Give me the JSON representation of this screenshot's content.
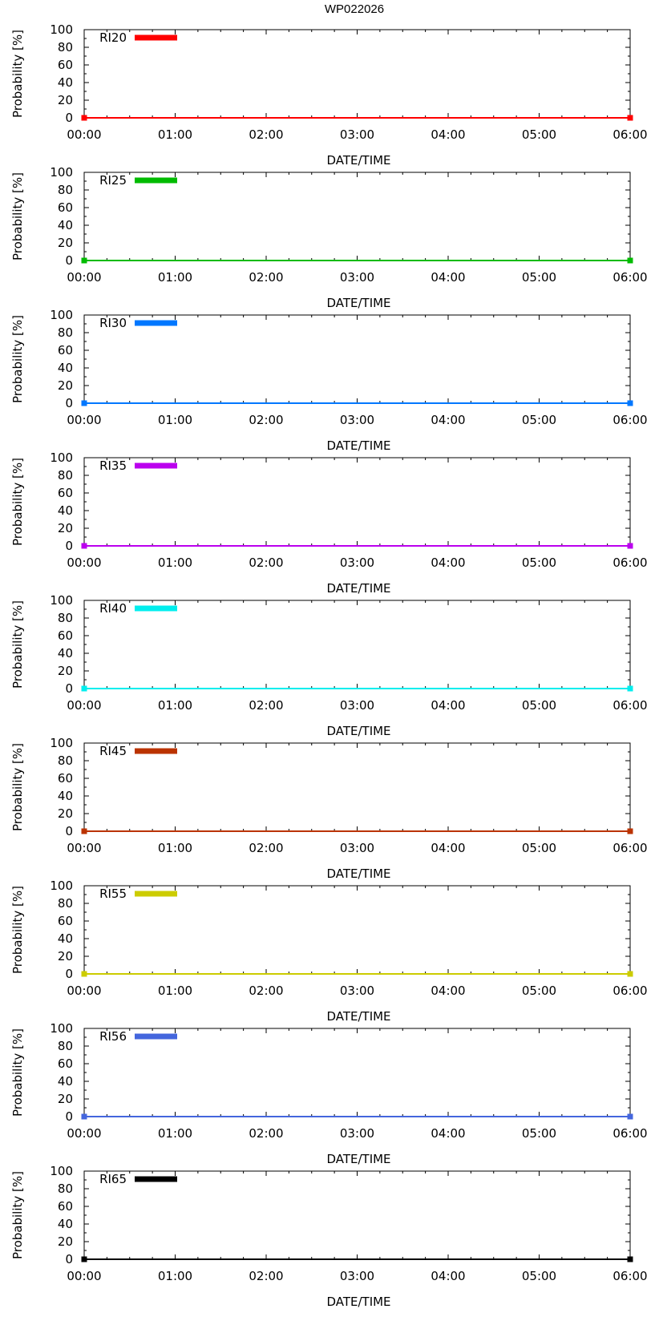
{
  "figure_title": "WP022026",
  "chart_data": [
    {
      "type": "line",
      "title": "",
      "xlabel": "DATE/TIME",
      "ylabel": "Probability [%]",
      "categories": [
        "00:00",
        "01:00",
        "02:00",
        "03:00",
        "04:00",
        "05:00",
        "06:00"
      ],
      "yticks": [
        "0",
        "20",
        "40",
        "60",
        "80",
        "100"
      ],
      "ylim": [
        0,
        100
      ],
      "xlim": [
        0,
        6
      ],
      "legend": "top-left",
      "series": [
        {
          "name": "RI20",
          "color": "#ff0000",
          "x": [
            0,
            6
          ],
          "values": [
            0,
            0
          ]
        }
      ]
    },
    {
      "type": "line",
      "title": "",
      "xlabel": "DATE/TIME",
      "ylabel": "Probability [%]",
      "categories": [
        "00:00",
        "01:00",
        "02:00",
        "03:00",
        "04:00",
        "05:00",
        "06:00"
      ],
      "yticks": [
        "0",
        "20",
        "40",
        "60",
        "80",
        "100"
      ],
      "ylim": [
        0,
        100
      ],
      "xlim": [
        0,
        6
      ],
      "legend": "top-left",
      "series": [
        {
          "name": "RI25",
          "color": "#00bb00",
          "x": [
            0,
            6
          ],
          "values": [
            0,
            0
          ]
        }
      ]
    },
    {
      "type": "line",
      "title": "",
      "xlabel": "DATE/TIME",
      "ylabel": "Probability [%]",
      "categories": [
        "00:00",
        "01:00",
        "02:00",
        "03:00",
        "04:00",
        "05:00",
        "06:00"
      ],
      "yticks": [
        "0",
        "20",
        "40",
        "60",
        "80",
        "100"
      ],
      "ylim": [
        0,
        100
      ],
      "xlim": [
        0,
        6
      ],
      "legend": "top-left",
      "series": [
        {
          "name": "RI30",
          "color": "#0077ff",
          "x": [
            0,
            6
          ],
          "values": [
            0,
            0
          ]
        }
      ]
    },
    {
      "type": "line",
      "title": "",
      "xlabel": "DATE/TIME",
      "ylabel": "Probability [%]",
      "categories": [
        "00:00",
        "01:00",
        "02:00",
        "03:00",
        "04:00",
        "05:00",
        "06:00"
      ],
      "yticks": [
        "0",
        "20",
        "40",
        "60",
        "80",
        "100"
      ],
      "ylim": [
        0,
        100
      ],
      "xlim": [
        0,
        6
      ],
      "legend": "top-left",
      "series": [
        {
          "name": "RI35",
          "color": "#bb00ee",
          "x": [
            0,
            6
          ],
          "values": [
            0,
            0
          ]
        }
      ]
    },
    {
      "type": "line",
      "title": "",
      "xlabel": "DATE/TIME",
      "ylabel": "Probability [%]",
      "categories": [
        "00:00",
        "01:00",
        "02:00",
        "03:00",
        "04:00",
        "05:00",
        "06:00"
      ],
      "yticks": [
        "0",
        "20",
        "40",
        "60",
        "80",
        "100"
      ],
      "ylim": [
        0,
        100
      ],
      "xlim": [
        0,
        6
      ],
      "legend": "top-left",
      "series": [
        {
          "name": "RI40",
          "color": "#00eeee",
          "x": [
            0,
            6
          ],
          "values": [
            0,
            0
          ]
        }
      ]
    },
    {
      "type": "line",
      "title": "",
      "xlabel": "DATE/TIME",
      "ylabel": "Probability [%]",
      "categories": [
        "00:00",
        "01:00",
        "02:00",
        "03:00",
        "04:00",
        "05:00",
        "06:00"
      ],
      "yticks": [
        "0",
        "20",
        "40",
        "60",
        "80",
        "100"
      ],
      "ylim": [
        0,
        100
      ],
      "xlim": [
        0,
        6
      ],
      "legend": "top-left",
      "series": [
        {
          "name": "RI45",
          "color": "#bb3300",
          "x": [
            0,
            6
          ],
          "values": [
            0,
            0
          ]
        }
      ]
    },
    {
      "type": "line",
      "title": "",
      "xlabel": "DATE/TIME",
      "ylabel": "Probability [%]",
      "categories": [
        "00:00",
        "01:00",
        "02:00",
        "03:00",
        "04:00",
        "05:00",
        "06:00"
      ],
      "yticks": [
        "0",
        "20",
        "40",
        "60",
        "80",
        "100"
      ],
      "ylim": [
        0,
        100
      ],
      "xlim": [
        0,
        6
      ],
      "legend": "top-left",
      "series": [
        {
          "name": "RI55",
          "color": "#cccc00",
          "x": [
            0,
            6
          ],
          "values": [
            0,
            0
          ]
        }
      ]
    },
    {
      "type": "line",
      "title": "",
      "xlabel": "DATE/TIME",
      "ylabel": "Probability [%]",
      "categories": [
        "00:00",
        "01:00",
        "02:00",
        "03:00",
        "04:00",
        "05:00",
        "06:00"
      ],
      "yticks": [
        "0",
        "20",
        "40",
        "60",
        "80",
        "100"
      ],
      "ylim": [
        0,
        100
      ],
      "xlim": [
        0,
        6
      ],
      "legend": "top-left",
      "series": [
        {
          "name": "RI56",
          "color": "#4466dd",
          "x": [
            0,
            6
          ],
          "values": [
            0,
            0
          ]
        }
      ]
    },
    {
      "type": "line",
      "title": "",
      "xlabel": "DATE/TIME",
      "ylabel": "Probability [%]",
      "categories": [
        "00:00",
        "01:00",
        "02:00",
        "03:00",
        "04:00",
        "05:00",
        "06:00"
      ],
      "yticks": [
        "0",
        "20",
        "40",
        "60",
        "80",
        "100"
      ],
      "ylim": [
        0,
        100
      ],
      "xlim": [
        0,
        6
      ],
      "legend": "top-left",
      "series": [
        {
          "name": "RI65",
          "color": "#000000",
          "x": [
            0,
            6
          ],
          "values": [
            0,
            0
          ]
        }
      ]
    }
  ]
}
